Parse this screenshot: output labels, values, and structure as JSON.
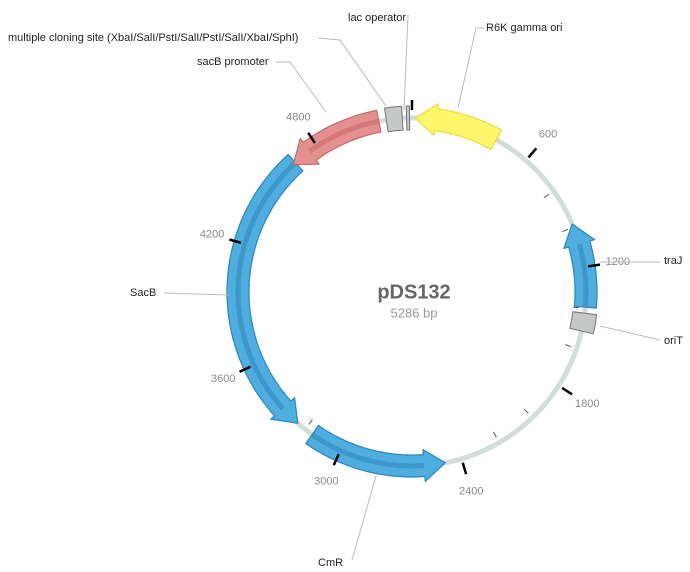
{
  "title": "pDS132",
  "subtitle": "5286 bp",
  "tick_labels": [
    "600",
    "1200",
    "1800",
    "2400",
    "3000",
    "3600",
    "4200",
    "4800"
  ],
  "features": [
    {
      "label": "lac operator"
    },
    {
      "label": "multiple cloning site (XbaI/SalI/PstI/SalI/PstI/SalI/XbaI/SphI)"
    },
    {
      "label": "sacB promoter"
    },
    {
      "label": "R6K gamma ori"
    },
    {
      "label": "traJ"
    },
    {
      "label": "oriT"
    },
    {
      "label": "SacB"
    },
    {
      "label": "CmR"
    }
  ]
}
